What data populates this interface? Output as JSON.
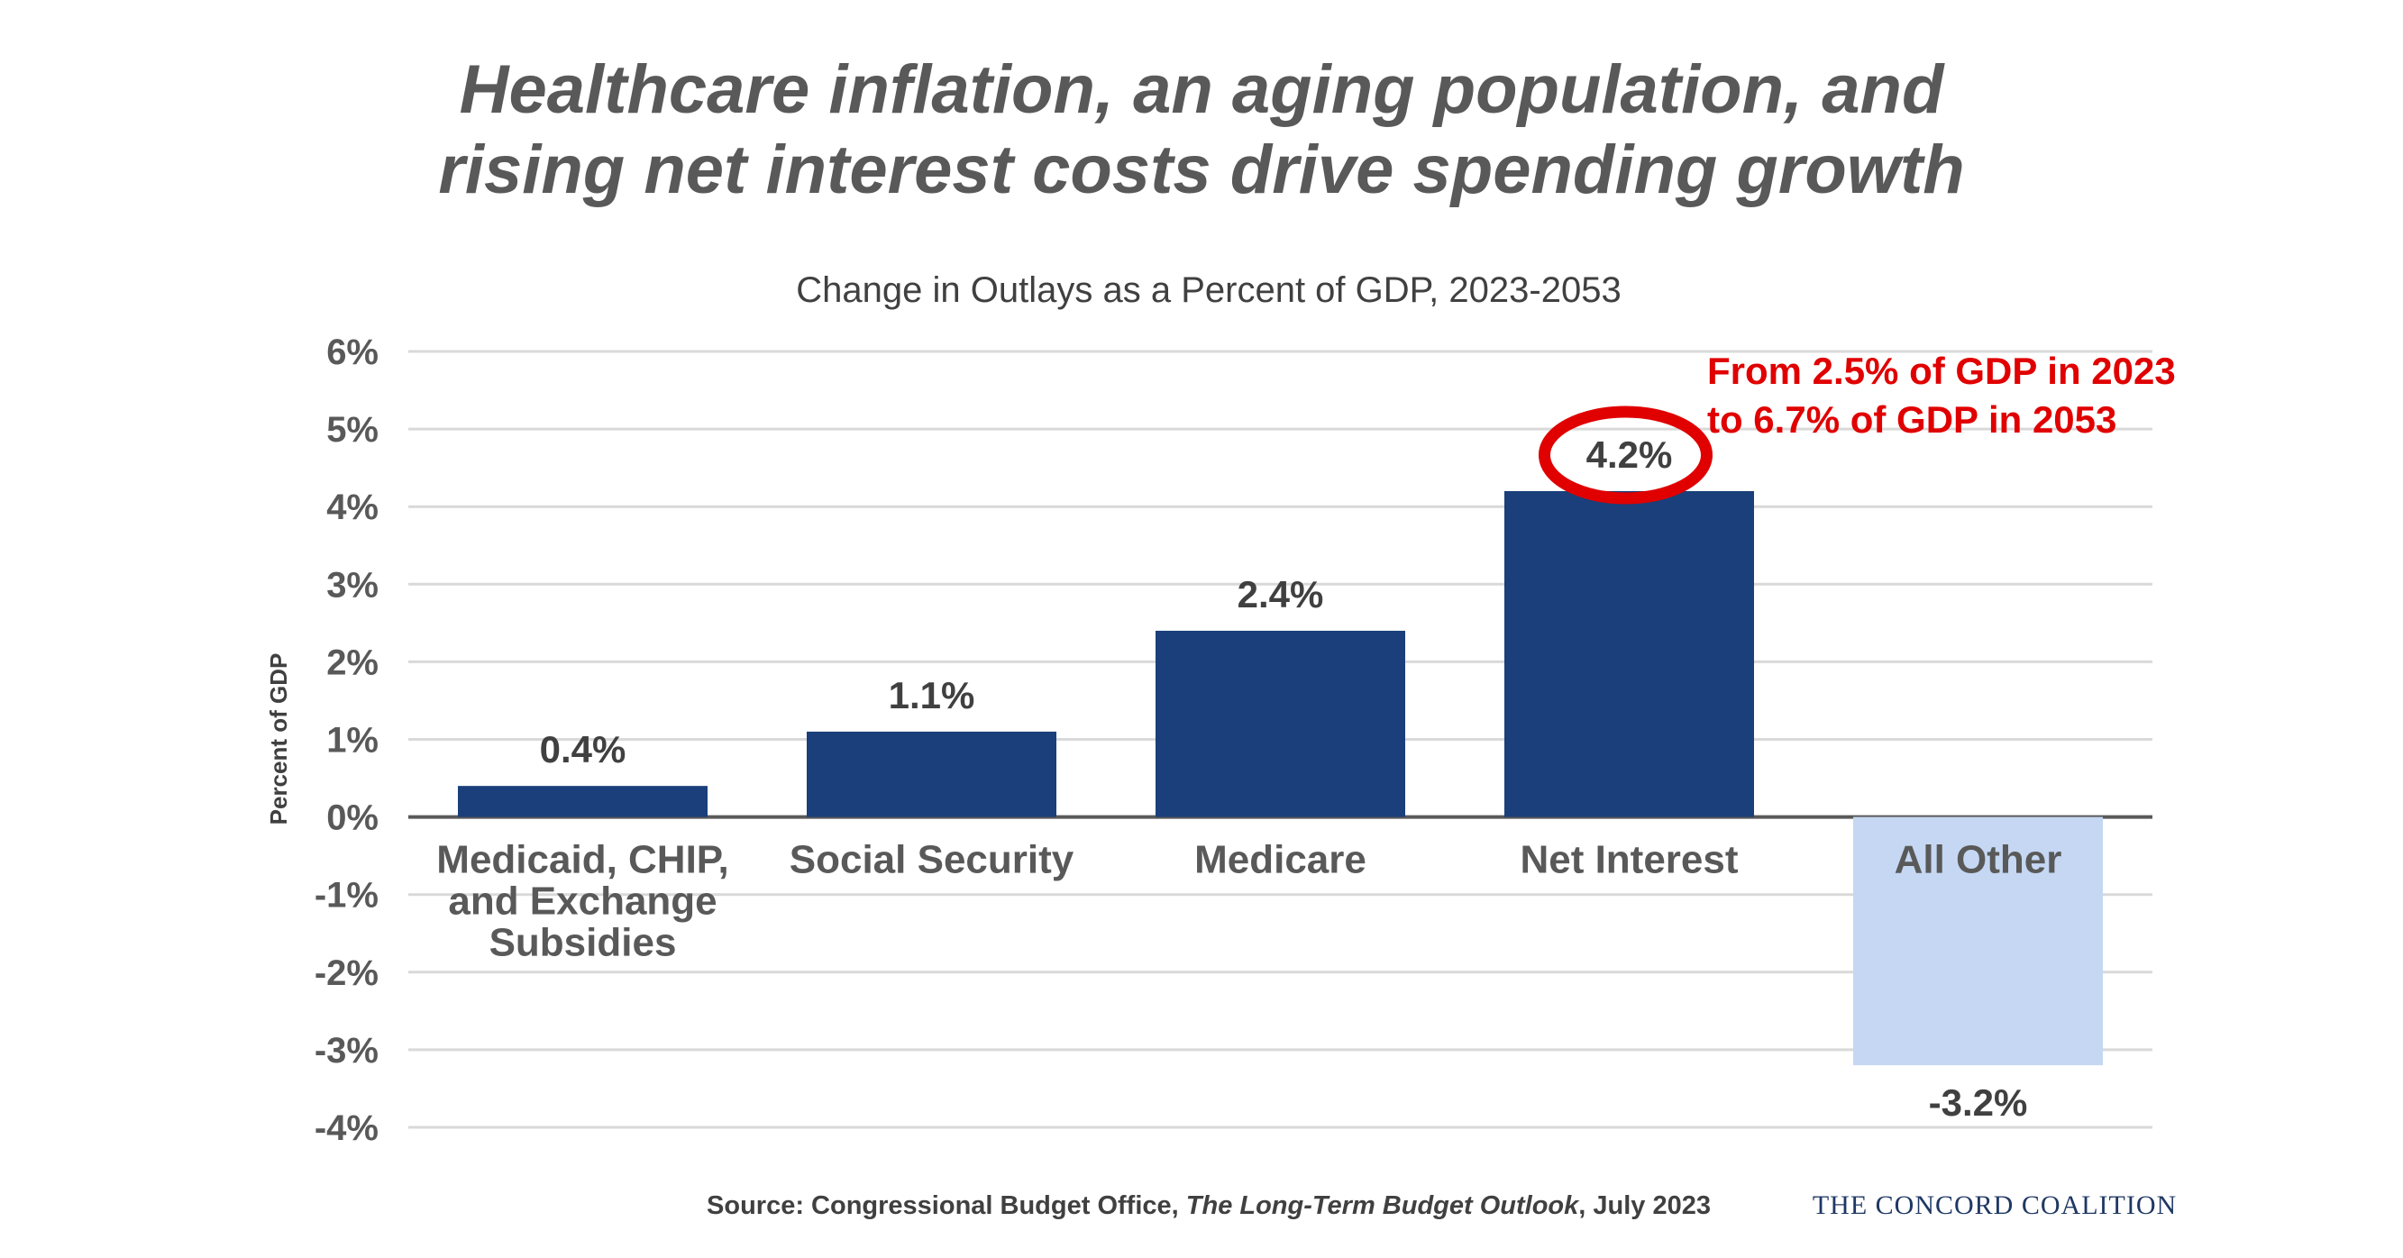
{
  "title_lines": [
    "Healthcare inflation, an aging population, and",
    "rising net interest costs drive spending growth"
  ],
  "chart_data": {
    "type": "bar",
    "title": "Change in Outlays as a Percent of GDP, 2023-2053",
    "ylabel": "Percent of GDP",
    "xlabel": "",
    "ylim": [
      -4,
      6
    ],
    "yticks": [
      "6%",
      "5%",
      "4%",
      "3%",
      "2%",
      "1%",
      "0%",
      "-1%",
      "-2%",
      "-3%",
      "-4%"
    ],
    "grid": true,
    "categories": [
      [
        "Medicaid, CHIP,",
        "and Exchange",
        "Subsidies"
      ],
      [
        "Social Security"
      ],
      [
        "Medicare"
      ],
      [
        "Net Interest"
      ],
      [
        "All Other"
      ]
    ],
    "values": [
      0.4,
      1.1,
      2.4,
      4.2,
      -3.2
    ],
    "data_labels": [
      "0.4%",
      "1.1%",
      "2.4%",
      "4.2%",
      "-3.2%"
    ],
    "bar_colors": [
      "#1a3f7a",
      "#1a3f7a",
      "#1a3f7a",
      "#1a3f7a",
      "#c5d7f2"
    ],
    "highlight_index": 3,
    "highlight_color": "#e00000",
    "annotation_lines": [
      "From 2.5% of GDP in 2023",
      "to 6.7% of GDP in 2053"
    ]
  },
  "source": {
    "prefix": "Source: Congressional Budget Office, ",
    "italic": "The Long-Term Budget Outlook",
    "suffix": ", July 2023"
  },
  "logo": "THE CONCORD COALITION"
}
